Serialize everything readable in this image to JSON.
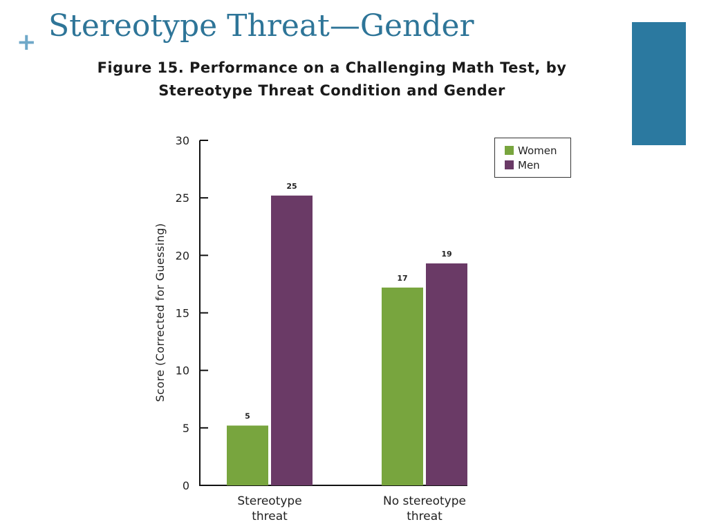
{
  "slide": {
    "plus_glyph": "+",
    "title": "Stereotype Threat—Gender"
  },
  "colors": {
    "title": "#2e7598",
    "accent": "#2b79a0",
    "women": "#78a53e",
    "men": "#6a3a66"
  },
  "chart_data": {
    "type": "bar",
    "title": "Figure 15. Performance on a Challenging Math Test, by Stereotype Threat Condition and Gender",
    "title_lines": [
      "Figure 15. Performance on a Challenging Math Test, by",
      "Stereotype Threat Condition and Gender"
    ],
    "categories": [
      {
        "lines": [
          "Stereotype",
          "threat"
        ]
      },
      {
        "lines": [
          "No stereotype",
          "threat"
        ]
      }
    ],
    "series": [
      {
        "name": "Women",
        "color": "#78a53e",
        "values": [
          5.2,
          17.2
        ],
        "labels": [
          "5",
          "17"
        ]
      },
      {
        "name": "Men",
        "color": "#6a3a66",
        "values": [
          25.2,
          19.3
        ],
        "labels": [
          "25",
          "19"
        ]
      }
    ],
    "xlabel": "",
    "ylabel": "Score (Corrected for Guessing)",
    "ylim": [
      0,
      30
    ],
    "yticks": [
      0,
      5,
      10,
      15,
      20,
      25,
      30
    ],
    "grid": false,
    "legend_position": "top-right"
  }
}
